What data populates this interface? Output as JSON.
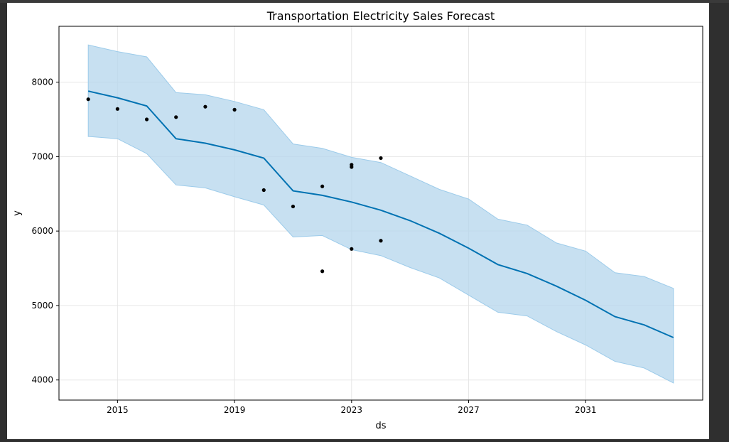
{
  "chart_data": {
    "type": "line",
    "title": "Transportation Electricity Sales Forecast",
    "xlabel": "ds",
    "ylabel": "y",
    "xlim": [
      2013.0,
      2035.0
    ],
    "ylim": [
      3730,
      8750
    ],
    "x_ticks": [
      2015,
      2019,
      2023,
      2027,
      2031
    ],
    "y_ticks": [
      4000,
      5000,
      6000,
      7000,
      8000
    ],
    "grid": true,
    "colors": {
      "forecast": "#0072b2",
      "interval_fill": "#b4d6ec",
      "interval_edge": "#9ccbea",
      "observed": "#000000",
      "grid": "#e6e6e6"
    },
    "series": [
      {
        "kind": "forecast",
        "x": [
          2014,
          2015,
          2016,
          2017,
          2018,
          2019,
          2020,
          2021,
          2022,
          2023,
          2024,
          2025,
          2026,
          2027,
          2028,
          2029,
          2030,
          2031,
          2032,
          2033,
          2034
        ],
        "values": [
          7880,
          7790,
          7680,
          7240,
          7180,
          7090,
          6980,
          6540,
          6480,
          6390,
          6280,
          6140,
          5970,
          5770,
          5550,
          5430,
          5260,
          5070,
          4850,
          4740,
          4570
        ]
      },
      {
        "kind": "interval_upper",
        "x": [
          2014,
          2015,
          2016,
          2017,
          2018,
          2019,
          2020,
          2021,
          2022,
          2023,
          2024,
          2025,
          2026,
          2027,
          2028,
          2029,
          2030,
          2031,
          2032,
          2033,
          2034
        ],
        "values": [
          8500,
          8410,
          8340,
          7860,
          7830,
          7740,
          7630,
          7170,
          7110,
          6990,
          6920,
          6740,
          6560,
          6430,
          6160,
          6080,
          5840,
          5730,
          5440,
          5390,
          5230
        ]
      },
      {
        "kind": "interval_lower",
        "x": [
          2014,
          2015,
          2016,
          2017,
          2018,
          2019,
          2020,
          2021,
          2022,
          2023,
          2024,
          2025,
          2026,
          2027,
          2028,
          2029,
          2030,
          2031,
          2032,
          2033,
          2034
        ],
        "values": [
          7270,
          7240,
          7040,
          6620,
          6580,
          6460,
          6350,
          5920,
          5940,
          5750,
          5670,
          5510,
          5370,
          5140,
          4910,
          4860,
          4650,
          4470,
          4250,
          4160,
          3960
        ]
      },
      {
        "kind": "observed",
        "points": [
          [
            2014,
            7770
          ],
          [
            2015,
            7640
          ],
          [
            2016,
            7500
          ],
          [
            2017,
            7530
          ],
          [
            2018,
            7670
          ],
          [
            2019,
            7630
          ],
          [
            2020,
            6550
          ],
          [
            2021,
            6330
          ],
          [
            2022,
            6600
          ],
          [
            2022,
            5460
          ],
          [
            2023,
            6890
          ],
          [
            2023,
            6860
          ],
          [
            2023,
            5760
          ],
          [
            2024,
            6980
          ],
          [
            2024,
            5870
          ]
        ]
      }
    ]
  }
}
